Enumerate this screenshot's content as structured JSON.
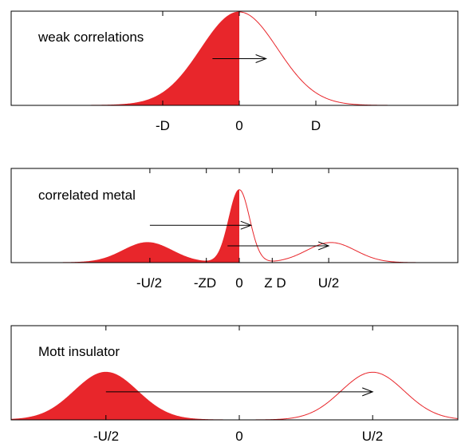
{
  "colors": {
    "fill": "#e8262b",
    "curve": "#e8262b",
    "frame": "#000000",
    "arrow": "#000000"
  },
  "panels": [
    {
      "label": "weak correlations",
      "ticks": [
        {
          "value": -1,
          "label": "-D"
        },
        {
          "value": 0,
          "label": "0"
        },
        {
          "value": 1,
          "label": "D"
        }
      ],
      "arrows": [
        {
          "from": -0.35,
          "to": 0.35,
          "level": 0.5
        }
      ]
    },
    {
      "label": "correlated metal",
      "ticks": [
        {
          "value": -1.9,
          "label": "-U/2"
        },
        {
          "value": -0.7,
          "label": "-ZD"
        },
        {
          "value": 0,
          "label": "0"
        },
        {
          "value": 0.7,
          "label": "Z D"
        },
        {
          "value": 1.9,
          "label": "U/2"
        }
      ],
      "arrows": [
        {
          "from": -1.9,
          "to": 0.25,
          "level": 0.4
        },
        {
          "from": -0.25,
          "to": 1.9,
          "level": 0.18
        }
      ]
    },
    {
      "label": "Mott insulator",
      "ticks": [
        {
          "value": -1.9,
          "label": "-U/2"
        },
        {
          "value": 0,
          "label": "0"
        },
        {
          "value": 1.9,
          "label": "U/2"
        }
      ],
      "arrows": [
        {
          "from": -1.9,
          "to": 1.9,
          "level": 0.0
        }
      ]
    }
  ]
}
